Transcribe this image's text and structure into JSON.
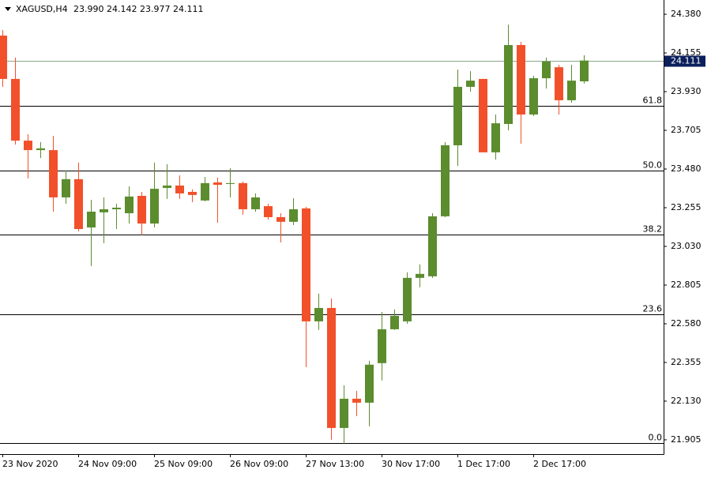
{
  "chart_data": {
    "type": "candlestick",
    "title": "XAGUSD,H4",
    "subtitle": "23.990 24.142 23.977 24.111",
    "up_color": "#5b8c2e",
    "down_color": "#f2502a",
    "categories": [
      "23 Nov 2020",
      null,
      null,
      null,
      null,
      null,
      "24 Nov 09:00",
      null,
      null,
      null,
      null,
      null,
      "25 Nov 09:00",
      null,
      null,
      null,
      null,
      null,
      "26 Nov 09:00",
      null,
      null,
      null,
      null,
      null,
      "27 Nov 13:00",
      null,
      null,
      null,
      null,
      null,
      "30 Nov 17:00",
      null,
      null,
      null,
      null,
      null,
      "1 Dec 17:00",
      null,
      null,
      null,
      null,
      null,
      "2 Dec 17:00",
      null,
      null,
      null,
      null
    ],
    "open": [
      24.256,
      24.004,
      23.645,
      23.59,
      23.59,
      23.315,
      23.421,
      23.14,
      23.228,
      23.246,
      23.223,
      23.324,
      23.163,
      23.37,
      23.384,
      23.347,
      23.297,
      23.402,
      23.393,
      23.398,
      23.246,
      23.264,
      23.2,
      23.173,
      23.251,
      22.594,
      22.672,
      21.974,
      22.144,
      22.121,
      22.351,
      22.548,
      22.594,
      22.847,
      22.856,
      23.205,
      23.618,
      23.958,
      24.004,
      23.577,
      23.742,
      24.201,
      23.797,
      24.008,
      24.072,
      23.88,
      23.99
    ],
    "high": [
      24.288,
      24.128,
      23.682,
      23.636,
      23.673,
      23.471,
      23.517,
      23.301,
      23.315,
      23.278,
      23.379,
      23.347,
      23.517,
      23.508,
      23.443,
      23.361,
      23.434,
      23.43,
      23.485,
      23.407,
      23.338,
      23.278,
      23.223,
      23.31,
      23.26,
      22.755,
      22.727,
      22.222,
      22.19,
      22.365,
      22.649,
      22.663,
      22.879,
      22.925,
      23.223,
      23.636,
      24.059,
      24.049,
      24.004,
      23.797,
      24.32,
      24.219,
      24.022,
      24.128,
      24.086,
      24.086,
      24.142
    ],
    "low": [
      23.958,
      23.622,
      23.425,
      23.544,
      23.232,
      23.278,
      23.118,
      22.916,
      23.049,
      23.131,
      23.163,
      23.095,
      23.14,
      23.306,
      23.306,
      23.287,
      23.292,
      23.168,
      23.315,
      23.214,
      23.232,
      23.186,
      23.053,
      23.154,
      22.328,
      22.544,
      21.906,
      21.883,
      22.043,
      21.984,
      22.25,
      22.544,
      22.58,
      22.792,
      22.847,
      23.2,
      23.498,
      23.93,
      23.577,
      23.535,
      23.705,
      23.627,
      23.788,
      23.948,
      23.797,
      23.866,
      23.977
    ],
    "close": [
      24.004,
      23.645,
      23.59,
      23.6,
      23.315,
      23.421,
      23.131,
      23.232,
      23.246,
      23.255,
      23.32,
      23.163,
      23.365,
      23.384,
      23.338,
      23.329,
      23.398,
      23.388,
      23.398,
      23.246,
      23.315,
      23.2,
      23.173,
      23.246,
      22.594,
      22.672,
      21.974,
      22.144,
      22.121,
      22.342,
      22.548,
      22.626,
      22.847,
      22.87,
      23.205,
      23.618,
      23.958,
      23.994,
      23.577,
      23.746,
      24.201,
      23.797,
      24.008,
      24.105,
      23.88,
      23.994,
      24.111
    ],
    "ylim": [
      21.822,
      24.463
    ],
    "yticks": [
      {
        "value": 24.38,
        "label": "24.380"
      },
      24.155,
      {
        "value": 23.93,
        "label": "23.930"
      },
      23.705,
      {
        "value": 23.48,
        "label": "23.480"
      },
      23.255,
      {
        "value": 23.03,
        "label": "23.030"
      },
      22.805,
      {
        "value": 22.58,
        "label": "22.580"
      },
      22.355,
      {
        "value": 22.13,
        "label": "22.130"
      },
      21.905
    ],
    "current_price": 24.111,
    "fib_levels": [
      {
        "label": "61.8",
        "value": 23.847
      },
      {
        "label": "50.0",
        "value": 23.471
      },
      {
        "label": "38.2",
        "value": 23.099
      },
      {
        "label": "23.6",
        "value": 22.635
      },
      {
        "label": "0.0",
        "value": 21.887
      }
    ]
  }
}
